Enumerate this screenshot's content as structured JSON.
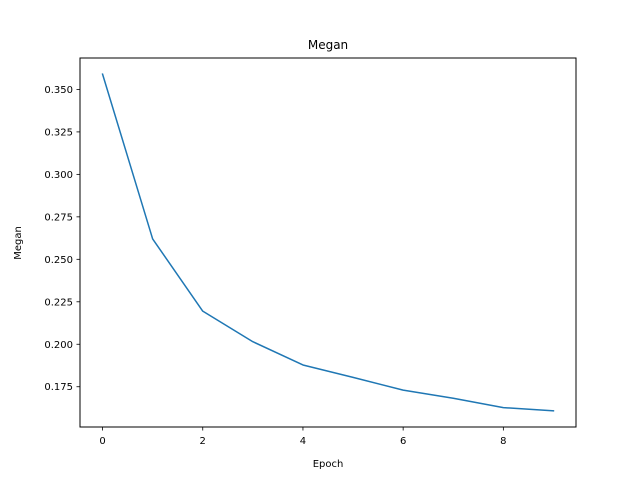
{
  "chart_data": {
    "type": "line",
    "title": "Megan",
    "xlabel": "Epoch",
    "ylabel": "Megan",
    "x": [
      0,
      1,
      2,
      3,
      4,
      5,
      6,
      7,
      8,
      9
    ],
    "series": [
      {
        "values": [
          0.359,
          0.262,
          0.2195,
          0.2015,
          0.1878,
          0.1805,
          0.173,
          0.1682,
          0.1627,
          0.1608
        ],
        "color": "#1f77b4"
      }
    ],
    "xlim": [
      -0.45,
      9.45
    ],
    "ylim": [
      0.1513,
      0.3685
    ],
    "xticks": [
      0,
      2,
      4,
      6,
      8
    ],
    "xtick_labels": [
      "0",
      "2",
      "4",
      "6",
      "8"
    ],
    "yticks": [
      0.175,
      0.2,
      0.225,
      0.25,
      0.275,
      0.3,
      0.325,
      0.35
    ],
    "ytick_labels": [
      "0.175",
      "0.200",
      "0.225",
      "0.250",
      "0.275",
      "0.300",
      "0.325",
      "0.350"
    ],
    "grid": false,
    "legend": false
  }
}
